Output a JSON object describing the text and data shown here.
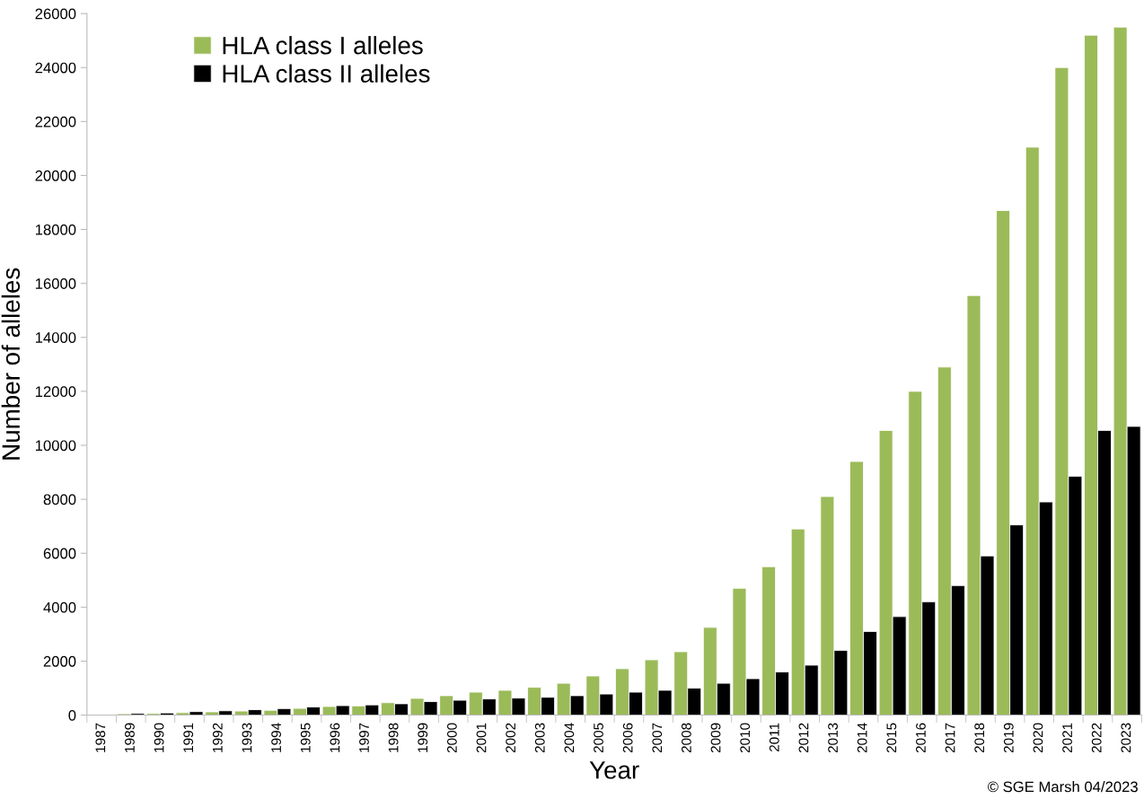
{
  "chart_data": {
    "type": "bar",
    "xlabel": "Year",
    "ylabel": "Number of alleles",
    "categories": [
      "1987",
      "1989",
      "1990",
      "1991",
      "1992",
      "1993",
      "1994",
      "1995",
      "1996",
      "1997",
      "1998",
      "1999",
      "2000",
      "2001",
      "2002",
      "2003",
      "2004",
      "2005",
      "2006",
      "2007",
      "2008",
      "2009",
      "2010",
      "2011",
      "2012",
      "2013",
      "2014",
      "2015",
      "2016",
      "2017",
      "2018",
      "2019",
      "2020",
      "2021",
      "2022",
      "2023"
    ],
    "series": [
      {
        "name": "HLA class I alleles",
        "color": "#9bbb59",
        "values": [
          null,
          50,
          60,
          90,
          120,
          150,
          180,
          250,
          320,
          340,
          460,
          620,
          720,
          850,
          920,
          1030,
          1180,
          1450,
          1720,
          2050,
          2350,
          3250,
          4700,
          5500,
          6900,
          8100,
          9400,
          10550,
          12000,
          12900,
          15550,
          18700,
          21050,
          24000,
          25200,
          25500
        ]
      },
      {
        "name": "HLA class II alleles",
        "color": "#000000",
        "values": [
          null,
          60,
          80,
          130,
          160,
          200,
          240,
          300,
          350,
          380,
          420,
          500,
          550,
          600,
          630,
          660,
          720,
          780,
          850,
          920,
          1000,
          1180,
          1350,
          1600,
          1850,
          2400,
          3100,
          3650,
          4200,
          4800,
          5900,
          7050,
          7900,
          8850,
          10550,
          10700
        ]
      }
    ],
    "ylim": [
      0,
      26000
    ],
    "yticks": [
      0,
      2000,
      4000,
      6000,
      8000,
      10000,
      12000,
      14000,
      16000,
      18000,
      20000,
      22000,
      24000,
      26000
    ],
    "grid": false,
    "legend": "top left",
    "annotations": [
      "© SGE Marsh 04/2023"
    ]
  }
}
